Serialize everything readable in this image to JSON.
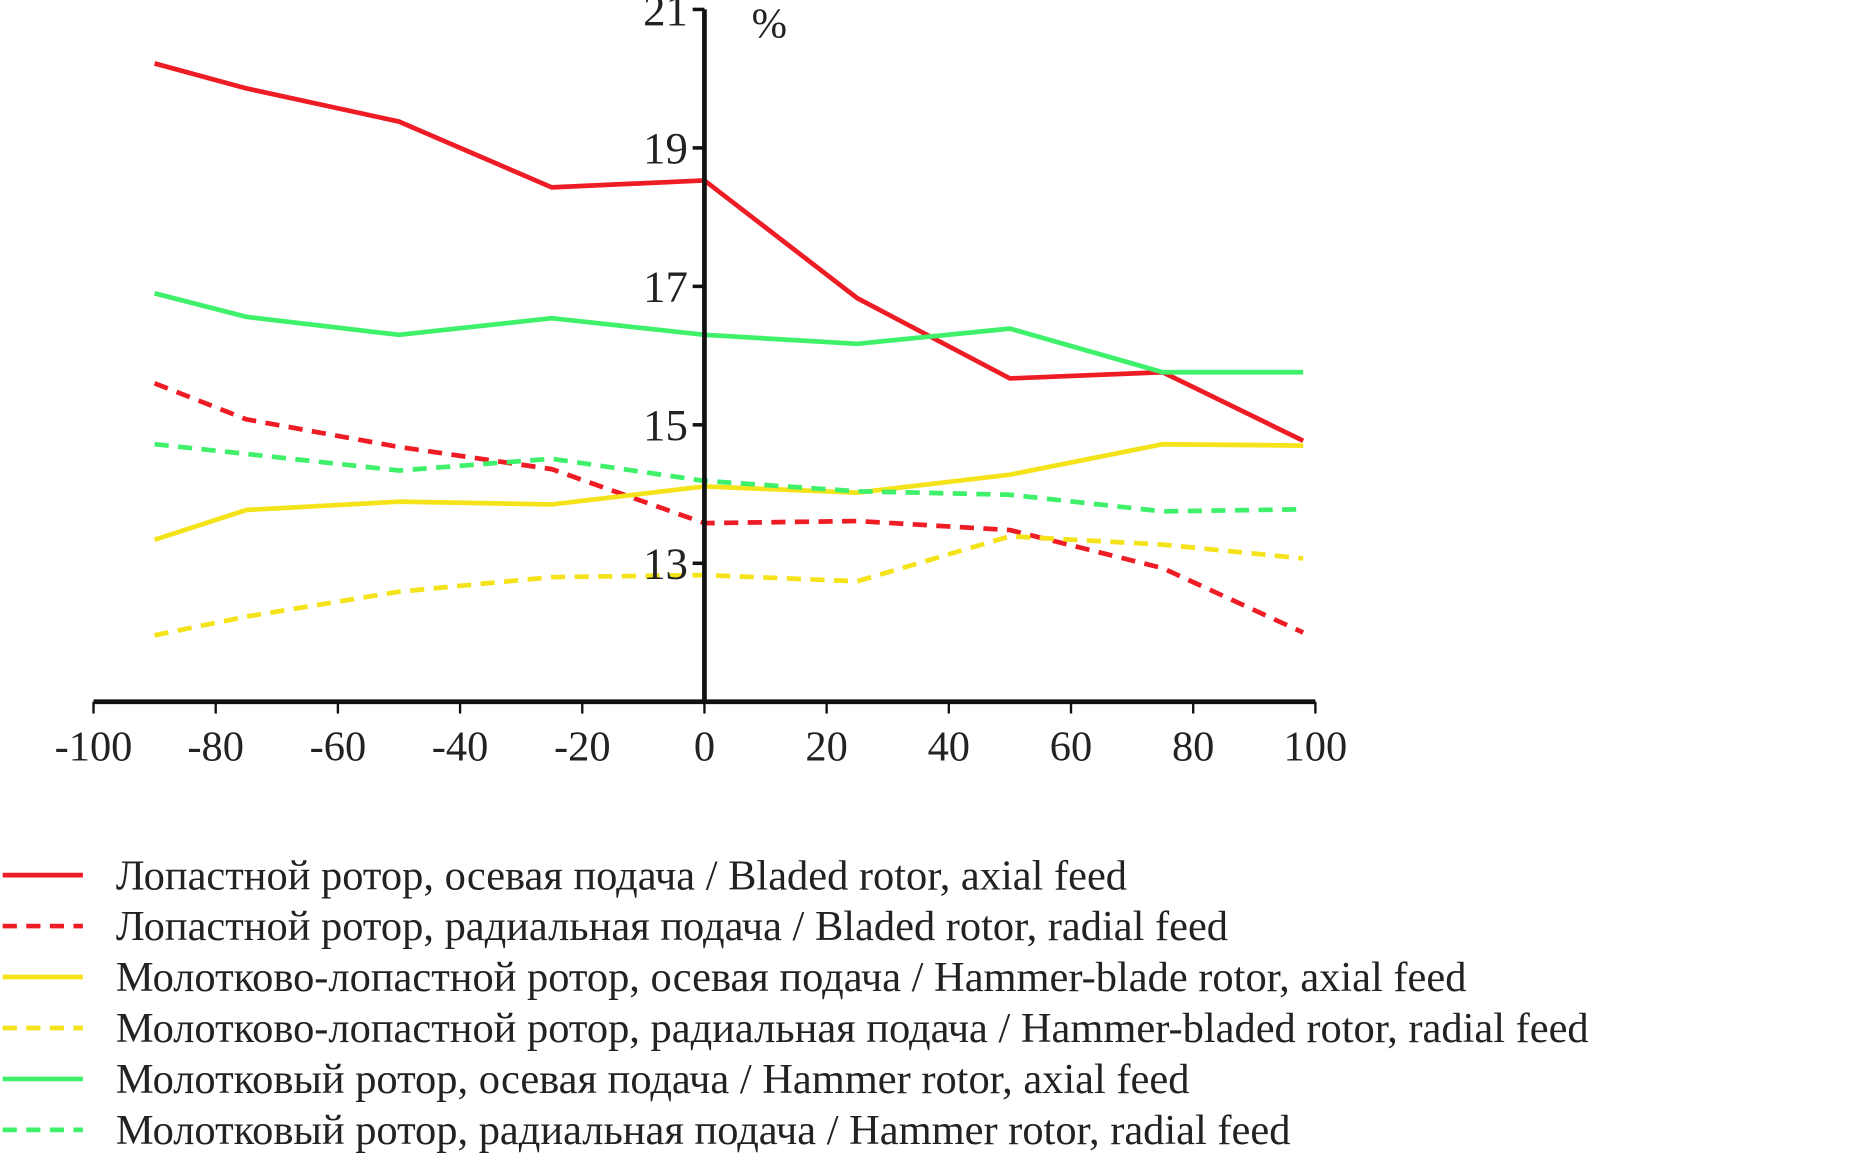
{
  "chart_data": {
    "type": "line",
    "title": "",
    "xlabel": "",
    "ylabel": "%",
    "xlim": [
      -100,
      100
    ],
    "ylim": [
      11,
      21
    ],
    "x_ticks": [
      -100,
      -80,
      -60,
      -40,
      -20,
      0,
      20,
      40,
      60,
      80,
      100
    ],
    "y_ticks": [
      13,
      15,
      17,
      19,
      21
    ],
    "grid": false,
    "legend_position": "bottom",
    "x": [
      -90,
      -75,
      -50,
      -25,
      0,
      25,
      50,
      75,
      98
    ],
    "series": [
      {
        "name": "Лопастной ротор, осевая подача / Bladed rotor, axial feed",
        "color": "#ee1c25",
        "dashed": false,
        "values": [
          20.22,
          19.86,
          19.38,
          18.43,
          18.53,
          16.83,
          15.67,
          15.76,
          14.77
        ]
      },
      {
        "name": "Лопастной ротор, радиальная подача / Bladed rotor, radial feed",
        "color": "#ee1c25",
        "dashed": true,
        "values": [
          15.6,
          15.08,
          14.68,
          14.36,
          13.58,
          13.61,
          13.48,
          12.93,
          12.0
        ]
      },
      {
        "name": "Молотково-лопастной ротор, осевая подача / Hammer-blade rotor, axial feed",
        "color": "#f5e31a",
        "dashed": false,
        "values": [
          13.34,
          13.77,
          13.89,
          13.85,
          14.11,
          14.02,
          14.28,
          14.72,
          14.7
        ]
      },
      {
        "name": "Молотково-лопастной ротор, радиальная подача / Hammer-bladed rotor, radial feed",
        "color": "#f5e31a",
        "dashed": true,
        "values": [
          11.96,
          12.23,
          12.59,
          12.8,
          12.83,
          12.74,
          13.39,
          13.27,
          13.07
        ]
      },
      {
        "name": "Молотковый ротор, осевая подача / Hammer rotor, axial feed",
        "color": "#3ef06a",
        "dashed": false,
        "values": [
          16.9,
          16.56,
          16.3,
          16.54,
          16.3,
          16.17,
          16.39,
          15.76,
          15.76
        ]
      },
      {
        "name": "Молотковый ротор, радиальная подача / Hammer rotor, radial feed",
        "color": "#3ef06a",
        "dashed": true,
        "values": [
          14.72,
          14.58,
          14.34,
          14.51,
          14.19,
          14.04,
          13.99,
          13.75,
          13.78
        ]
      }
    ]
  }
}
